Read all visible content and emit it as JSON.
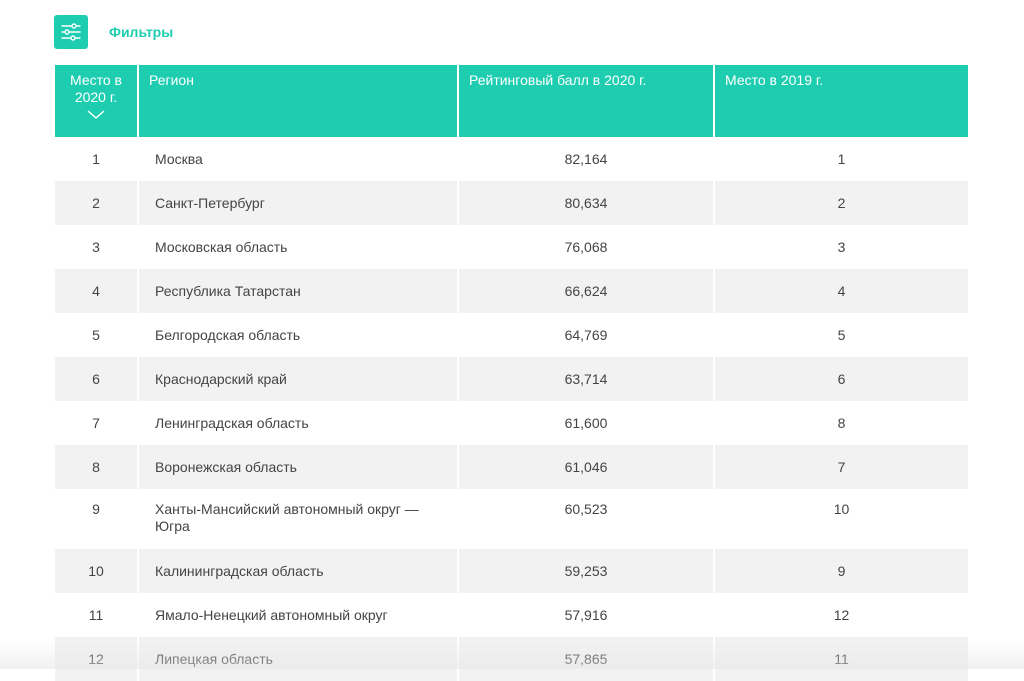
{
  "toolbar": {
    "filters_label": "Фильтры",
    "accent": "#1ecdb0"
  },
  "table": {
    "headers": {
      "place_2020": "Место в 2020 г.",
      "region": "Регион",
      "score_2020": "Рейтинговый балл в 2020 г.",
      "place_2019": "Место в 2019 г."
    },
    "rows": [
      {
        "place": "1",
        "region": "Москва",
        "score": "82,164",
        "prev": "1"
      },
      {
        "place": "2",
        "region": "Санкт-Петербург",
        "score": "80,634",
        "prev": "2"
      },
      {
        "place": "3",
        "region": "Московская область",
        "score": "76,068",
        "prev": "3"
      },
      {
        "place": "4",
        "region": "Республика Татарстан",
        "score": "66,624",
        "prev": "4"
      },
      {
        "place": "5",
        "region": "Белгородская область",
        "score": "64,769",
        "prev": "5"
      },
      {
        "place": "6",
        "region": "Краснодарский край",
        "score": "63,714",
        "prev": "6"
      },
      {
        "place": "7",
        "region": "Ленинградская область",
        "score": "61,600",
        "prev": "8"
      },
      {
        "place": "8",
        "region": "Воронежская область",
        "score": "61,046",
        "prev": "7"
      },
      {
        "place": "9",
        "region": "Ханты-Мансийский автономный округ — Югра",
        "score": "60,523",
        "prev": "10"
      },
      {
        "place": "10",
        "region": "Калининградская область",
        "score": "59,253",
        "prev": "9"
      },
      {
        "place": "11",
        "region": "Ямало-Ненецкий автономный округ",
        "score": "57,916",
        "prev": "12"
      },
      {
        "place": "12",
        "region": "Липецкая область",
        "score": "57,865",
        "prev": "11"
      }
    ]
  }
}
